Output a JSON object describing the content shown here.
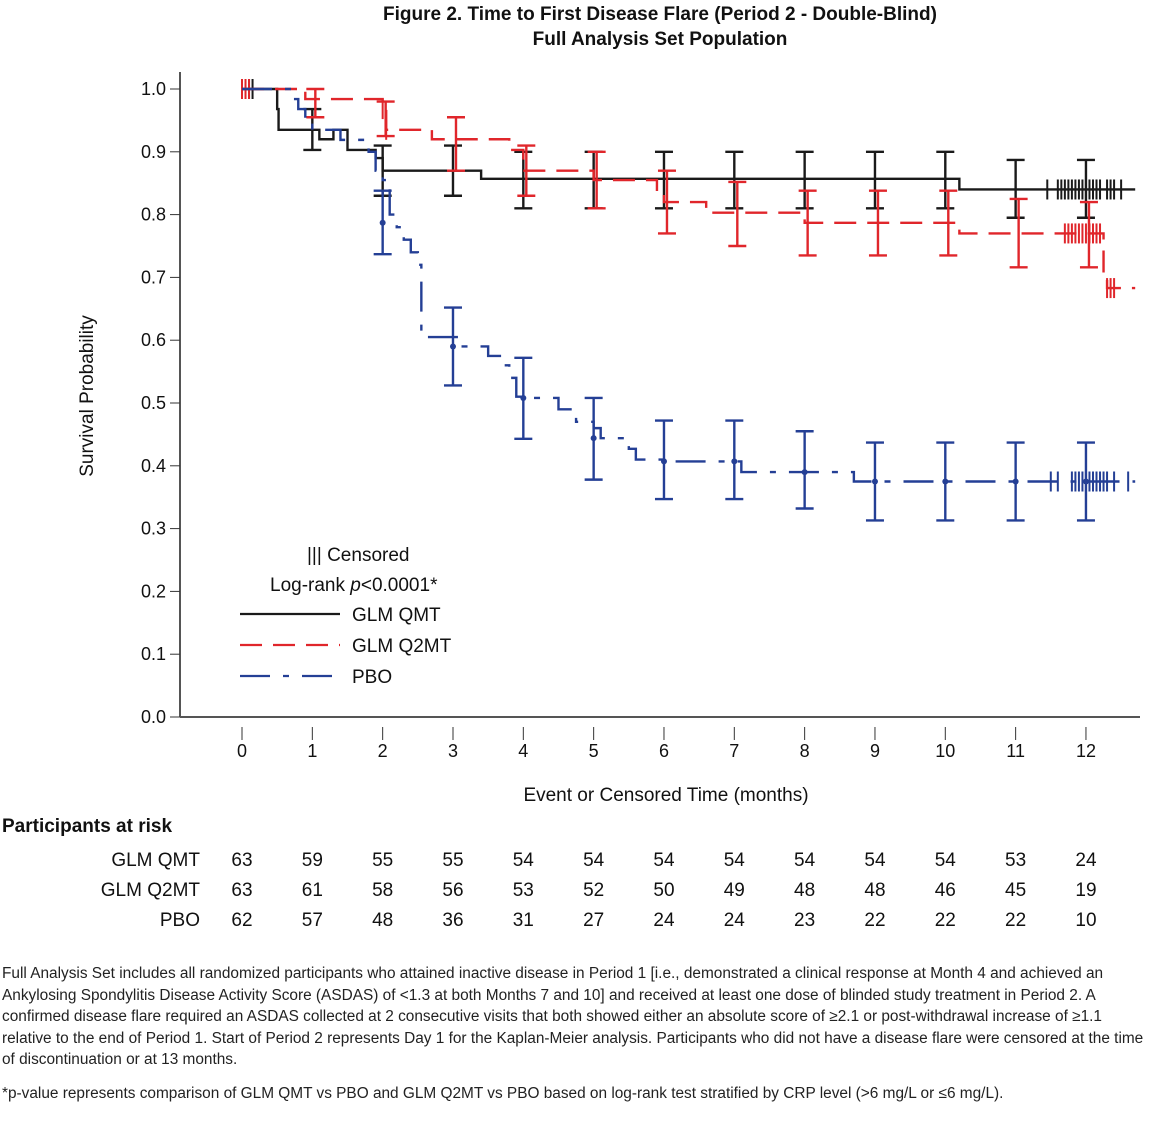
{
  "figure": {
    "title_line1": "Figure 2. Time to First Disease Flare (Period 2 - Double-Blind)",
    "title_line2": "Full Analysis Set Population"
  },
  "legend": {
    "censored_label": "||| Censored",
    "logrank_prefix": "Log-rank ",
    "logrank_p": "p",
    "logrank_suffix": "<0.0001*",
    "entries": [
      {
        "label": "GLM QMT",
        "style": "solid",
        "color": "#1a1a1a"
      },
      {
        "label": "GLM Q2MT",
        "style": "dashed",
        "color": "#e0262b"
      },
      {
        "label": "PBO",
        "style": "dash-dot",
        "color": "#243f95"
      }
    ]
  },
  "at_risk": {
    "title": "Participants at risk",
    "times": [
      0,
      1,
      2,
      3,
      4,
      5,
      6,
      7,
      8,
      9,
      10,
      11,
      12
    ],
    "rows": [
      {
        "label": "GLM QMT",
        "values": [
          63,
          59,
          55,
          55,
          54,
          54,
          54,
          54,
          54,
          54,
          54,
          53,
          24
        ]
      },
      {
        "label": "GLM Q2MT",
        "values": [
          63,
          61,
          58,
          56,
          53,
          52,
          50,
          49,
          48,
          48,
          46,
          45,
          19
        ]
      },
      {
        "label": "PBO",
        "values": [
          62,
          57,
          48,
          36,
          31,
          27,
          24,
          24,
          23,
          22,
          22,
          22,
          10
        ]
      }
    ]
  },
  "footnote": {
    "main": "Full Analysis Set includes all randomized participants who attained inactive disease in Period 1 [i.e., demonstrated a clinical response at Month 4 and achieved an Ankylosing Spondylitis Disease Activity Score (ASDAS) of <1.3 at both Months 7 and 10] and received at least one dose of blinded study treatment in Period 2. A confirmed disease flare required an ASDAS collected at 2 consecutive visits that both showed either an absolute score of ≥2.1 or post-withdrawal increase of ≥1.1 relative to the end of Period 1. Start of Period 2 represents Day 1 for the Kaplan-Meier analysis. Participants who did not have a disease flare were censored at the time of discontinuation or at 13 months.",
    "pvalue": "*p-value represents comparison of GLM QMT vs PBO and GLM Q2MT vs PBO based on log-rank test stratified by CRP level (>6 mg/L or ≤6 mg/L)."
  },
  "chart_data": {
    "type": "line",
    "subtype": "kaplan-meier step",
    "title": "Figure 2. Time to First Disease Flare (Period 2 - Double-Blind)",
    "subtitle": "Full Analysis Set Population",
    "xlabel": "Event or Censored Time (months)",
    "ylabel": "Survival Probability",
    "xlim": [
      -0.5,
      12.7
    ],
    "ylim": [
      0.0,
      1.0
    ],
    "x_ticks": [
      0,
      1,
      2,
      3,
      4,
      5,
      6,
      7,
      8,
      9,
      10,
      11,
      12
    ],
    "y_ticks": [
      0.0,
      0.1,
      0.2,
      0.3,
      0.4,
      0.5,
      0.6,
      0.7,
      0.8,
      0.9,
      1.0
    ],
    "y_tick_labels": [
      "0.0",
      "0.1",
      "0.2",
      "0.3",
      "0.4",
      "0.5",
      "0.6",
      "0.7",
      "0.8",
      "0.9",
      "1.0"
    ],
    "grid": false,
    "legend_position": "bottom-left",
    "series": [
      {
        "name": "GLM QMT",
        "color": "#1a1a1a",
        "style": "solid",
        "steps": [
          [
            0,
            1.0
          ],
          [
            0.5,
            0.968
          ],
          [
            0.52,
            0.935
          ],
          [
            1.1,
            0.92
          ],
          [
            1.3,
            0.935
          ],
          [
            1.5,
            0.903
          ],
          [
            1.75,
            0.903
          ],
          [
            1.9,
            0.89
          ],
          [
            2.0,
            0.87
          ],
          [
            3.0,
            0.87
          ],
          [
            3.4,
            0.857
          ],
          [
            10.2,
            0.857
          ],
          [
            10.2,
            0.84
          ],
          [
            12.7,
            0.84
          ]
        ],
        "ci": [
          {
            "t": 1.0,
            "est": 0.935,
            "lo": 0.903,
            "hi": 0.968
          },
          {
            "t": 2.0,
            "est": 0.87,
            "lo": 0.83,
            "hi": 0.91
          },
          {
            "t": 3.0,
            "est": 0.87,
            "lo": 0.83,
            "hi": 0.91
          },
          {
            "t": 4.0,
            "est": 0.857,
            "lo": 0.81,
            "hi": 0.9
          },
          {
            "t": 5.0,
            "est": 0.857,
            "lo": 0.81,
            "hi": 0.9
          },
          {
            "t": 6.0,
            "est": 0.857,
            "lo": 0.81,
            "hi": 0.9
          },
          {
            "t": 7.0,
            "est": 0.857,
            "lo": 0.81,
            "hi": 0.9
          },
          {
            "t": 8.0,
            "est": 0.857,
            "lo": 0.81,
            "hi": 0.9
          },
          {
            "t": 9.0,
            "est": 0.857,
            "lo": 0.81,
            "hi": 0.9
          },
          {
            "t": 10.0,
            "est": 0.857,
            "lo": 0.81,
            "hi": 0.9
          },
          {
            "t": 11.0,
            "est": 0.84,
            "lo": 0.795,
            "hi": 0.887
          },
          {
            "t": 12.0,
            "est": 0.84,
            "lo": 0.795,
            "hi": 0.887
          }
        ],
        "censored": [
          0.1,
          0.15,
          11.45,
          11.6,
          11.65,
          11.7,
          11.75,
          11.8,
          11.85,
          11.9,
          11.95,
          12.0,
          12.05,
          12.1,
          12.15,
          12.2,
          12.3,
          12.35,
          12.4,
          12.5
        ]
      },
      {
        "name": "GLM Q2MT",
        "color": "#e0262b",
        "style": "dashed",
        "steps": [
          [
            0,
            1.0
          ],
          [
            0.9,
            0.984
          ],
          [
            1.0,
            0.984
          ],
          [
            2.0,
            0.968
          ],
          [
            2.05,
            0.935
          ],
          [
            2.5,
            0.935
          ],
          [
            2.7,
            0.92
          ],
          [
            3.6,
            0.92
          ],
          [
            3.8,
            0.903
          ],
          [
            4.0,
            0.87
          ],
          [
            4.9,
            0.87
          ],
          [
            5.0,
            0.855
          ],
          [
            5.8,
            0.855
          ],
          [
            5.9,
            0.835
          ],
          [
            6.0,
            0.82
          ],
          [
            6.5,
            0.82
          ],
          [
            6.6,
            0.803
          ],
          [
            7.0,
            0.803
          ],
          [
            8.0,
            0.787
          ],
          [
            10.1,
            0.787
          ],
          [
            10.2,
            0.77
          ],
          [
            12.2,
            0.77
          ],
          [
            12.25,
            0.7
          ],
          [
            12.3,
            0.683
          ],
          [
            12.7,
            0.683
          ]
        ],
        "ci": [
          {
            "t": 1.0,
            "est": 0.984,
            "lo": 0.955,
            "hi": 1.0
          },
          {
            "t": 2.0,
            "est": 0.968,
            "lo": 0.925,
            "hi": 0.98
          },
          {
            "t": 3.0,
            "est": 0.92,
            "lo": 0.87,
            "hi": 0.955
          },
          {
            "t": 4.0,
            "est": 0.87,
            "lo": 0.83,
            "hi": 0.91
          },
          {
            "t": 5.0,
            "est": 0.855,
            "lo": 0.81,
            "hi": 0.9
          },
          {
            "t": 6.0,
            "est": 0.82,
            "lo": 0.77,
            "hi": 0.87
          },
          {
            "t": 7.0,
            "est": 0.803,
            "lo": 0.75,
            "hi": 0.852
          },
          {
            "t": 8.0,
            "est": 0.787,
            "lo": 0.735,
            "hi": 0.838
          },
          {
            "t": 9.0,
            "est": 0.787,
            "lo": 0.735,
            "hi": 0.838
          },
          {
            "t": 10.0,
            "est": 0.787,
            "lo": 0.735,
            "hi": 0.838
          },
          {
            "t": 11.0,
            "est": 0.77,
            "lo": 0.716,
            "hi": 0.825
          },
          {
            "t": 12.0,
            "est": 0.77,
            "lo": 0.716,
            "hi": 0.82
          }
        ],
        "censored": [
          0.0,
          0.05,
          0.1,
          2.0,
          2.05,
          11.7,
          11.75,
          11.8,
          11.85,
          11.9,
          11.95,
          12.0,
          12.05,
          12.1,
          12.15,
          12.2,
          12.3,
          12.35,
          12.4
        ]
      },
      {
        "name": "PBO",
        "color": "#243f95",
        "style": "dash-dot",
        "steps": [
          [
            0,
            1.0
          ],
          [
            0.7,
            0.984
          ],
          [
            0.8,
            0.968
          ],
          [
            0.9,
            0.952
          ],
          [
            1.0,
            0.935
          ],
          [
            1.3,
            0.935
          ],
          [
            1.4,
            0.919
          ],
          [
            1.75,
            0.919
          ],
          [
            1.8,
            0.9
          ],
          [
            1.9,
            0.87
          ],
          [
            2.0,
            0.855
          ],
          [
            2.1,
            0.8
          ],
          [
            2.2,
            0.78
          ],
          [
            2.3,
            0.76
          ],
          [
            2.4,
            0.74
          ],
          [
            2.5,
            0.72
          ],
          [
            2.55,
            0.61
          ],
          [
            2.6,
            0.605
          ],
          [
            3.0,
            0.605
          ],
          [
            3.1,
            0.59
          ],
          [
            3.5,
            0.575
          ],
          [
            3.7,
            0.56
          ],
          [
            3.8,
            0.54
          ],
          [
            3.9,
            0.51
          ],
          [
            4.0,
            0.508
          ],
          [
            4.5,
            0.49
          ],
          [
            4.75,
            0.47
          ],
          [
            5.0,
            0.46
          ],
          [
            5.1,
            0.444
          ],
          [
            5.4,
            0.444
          ],
          [
            5.5,
            0.427
          ],
          [
            5.6,
            0.41
          ],
          [
            6.0,
            0.407
          ],
          [
            7.0,
            0.407
          ],
          [
            7.1,
            0.39
          ],
          [
            8.0,
            0.39
          ],
          [
            8.7,
            0.375
          ],
          [
            12.7,
            0.375
          ]
        ],
        "ci": [
          {
            "t": 2.0,
            "est": 0.787,
            "lo": 0.737,
            "hi": 0.838
          },
          {
            "t": 3.0,
            "est": 0.59,
            "lo": 0.528,
            "hi": 0.652
          },
          {
            "t": 4.0,
            "est": 0.508,
            "lo": 0.443,
            "hi": 0.572
          },
          {
            "t": 5.0,
            "est": 0.444,
            "lo": 0.378,
            "hi": 0.508
          },
          {
            "t": 6.0,
            "est": 0.407,
            "lo": 0.347,
            "hi": 0.472
          },
          {
            "t": 7.0,
            "est": 0.407,
            "lo": 0.347,
            "hi": 0.472
          },
          {
            "t": 8.0,
            "est": 0.39,
            "lo": 0.332,
            "hi": 0.455
          },
          {
            "t": 9.0,
            "est": 0.375,
            "lo": 0.313,
            "hi": 0.437
          },
          {
            "t": 10.0,
            "est": 0.375,
            "lo": 0.313,
            "hi": 0.437
          },
          {
            "t": 11.0,
            "est": 0.375,
            "lo": 0.313,
            "hi": 0.437
          },
          {
            "t": 12.0,
            "est": 0.375,
            "lo": 0.313,
            "hi": 0.437
          }
        ],
        "censored": [
          11.5,
          11.6,
          11.8,
          11.85,
          11.9,
          11.95,
          12.0,
          12.05,
          12.1,
          12.15,
          12.2,
          12.25,
          12.3,
          12.4,
          12.6
        ]
      }
    ]
  }
}
